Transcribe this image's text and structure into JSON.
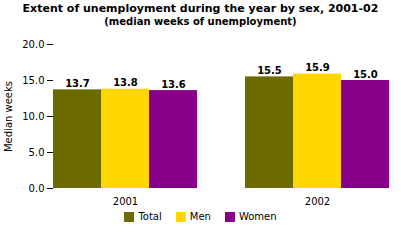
{
  "chart_data": {
    "type": "bar",
    "title": "Extent of unemployment during the year by sex, 2001-02",
    "subtitle": "(median weeks of unemployment)",
    "ylabel": "Median weeks",
    "categories": [
      "2001",
      "2002"
    ],
    "series": [
      {
        "name": "Total",
        "color": "#6b6b00",
        "values": [
          13.7,
          15.5
        ],
        "value_labels": [
          "13.7",
          "15.5"
        ]
      },
      {
        "name": "Men",
        "color": "#FFD700",
        "values": [
          13.8,
          15.9
        ],
        "value_labels": [
          "13.8",
          "15.9"
        ]
      },
      {
        "name": "Women",
        "color": "#880088",
        "values": [
          13.6,
          15.0
        ],
        "value_labels": [
          "13.6",
          "15.0"
        ]
      }
    ],
    "ylim": [
      0,
      20
    ],
    "yticks": [
      {
        "value": 0,
        "label": "0.0"
      },
      {
        "value": 5,
        "label": "5.0"
      },
      {
        "value": 10,
        "label": "10.0"
      },
      {
        "value": 15,
        "label": "15.0"
      },
      {
        "value": 20,
        "label": "20.0"
      }
    ],
    "data_labels": true,
    "grid": false,
    "legend": "bottom"
  }
}
